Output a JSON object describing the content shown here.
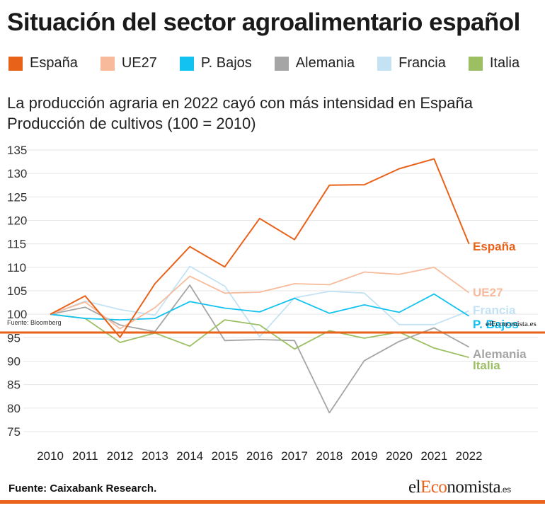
{
  "title": "Situación del sector agroalimentario español",
  "legend": [
    {
      "label": "España",
      "color": "#e8621a"
    },
    {
      "label": "UE27",
      "color": "#f7bb9b"
    },
    {
      "label": "P. Bajos",
      "color": "#12c2f0"
    },
    {
      "label": "Alemania",
      "color": "#a5a5a5"
    },
    {
      "label": "Francia",
      "color": "#c3e2f4"
    },
    {
      "label": "Italia",
      "color": "#9cbf63"
    }
  ],
  "subtitle_line1": "La producción agraria en 2022 cayó con más intensidad en España",
  "subtitle_line2": "Producción de cultivos (100 = 2010)",
  "chart_data": {
    "type": "line",
    "x": [
      2010,
      2011,
      2012,
      2013,
      2014,
      2015,
      2016,
      2017,
      2018,
      2019,
      2020,
      2021,
      2022
    ],
    "ylim": [
      75,
      135
    ],
    "yticks": [
      75,
      80,
      85,
      90,
      95,
      100,
      105,
      110,
      115,
      120,
      125,
      130,
      135
    ],
    "xlabel": "",
    "ylabel": "",
    "grid": true,
    "series": [
      {
        "name": "España",
        "color": "#e8621a",
        "values": [
          100,
          103.9,
          95.1,
          106.5,
          114.4,
          110.1,
          120.4,
          115.9,
          127.5,
          127.6,
          131.0,
          133.1,
          115.0
        ]
      },
      {
        "name": "UE27",
        "color": "#f7bb9b",
        "values": [
          100,
          102.6,
          96.9,
          101.4,
          108.1,
          104.5,
          104.7,
          106.5,
          106.3,
          109.0,
          108.5,
          110.0,
          104.6
        ]
      },
      {
        "name": "P. Bajos",
        "color": "#12c2f0",
        "values": [
          100,
          99.1,
          98.8,
          99.1,
          102.7,
          101.3,
          100.5,
          103.4,
          100.2,
          102.0,
          100.4,
          104.3,
          99.6
        ]
      },
      {
        "name": "Alemania",
        "color": "#a5a5a5",
        "values": [
          100,
          101.5,
          97.7,
          96.3,
          106.2,
          94.4,
          94.6,
          94.4,
          79.0,
          90.1,
          94.2,
          97.1,
          93.0
        ]
      },
      {
        "name": "Francia",
        "color": "#c3e2f4",
        "values": [
          100,
          102.8,
          101.0,
          99.8,
          110.2,
          106.0,
          95.2,
          103.5,
          104.9,
          104.5,
          97.8,
          97.8,
          100.7
        ]
      },
      {
        "name": "Italia",
        "color": "#9cbf63",
        "values": [
          100,
          99.1,
          94.0,
          96.0,
          93.2,
          98.8,
          97.7,
          92.6,
          96.5,
          94.9,
          96.2,
          92.8,
          90.8
        ]
      }
    ],
    "end_labels": [
      {
        "text": "España",
        "color": "#e8621a"
      },
      {
        "text": "UE27",
        "color": "#f7bb9b"
      },
      {
        "text": "Francia",
        "color": "#c3e2f4"
      },
      {
        "text": "P. Bajos",
        "color": "#12c2f0"
      },
      {
        "text": "Alemania",
        "color": "#a5a5a5"
      },
      {
        "text": "Italia",
        "color": "#9cbf63"
      }
    ]
  },
  "overlay_source": "Fuente: Bloomberg",
  "overlay_logo": "elEconomista.es",
  "footer": {
    "source": "Fuente:  Caixabank Research.",
    "logo_el": "el",
    "logo_eco": "Eco",
    "logo_nomista": "nomista",
    "logo_suffix": ".es"
  }
}
